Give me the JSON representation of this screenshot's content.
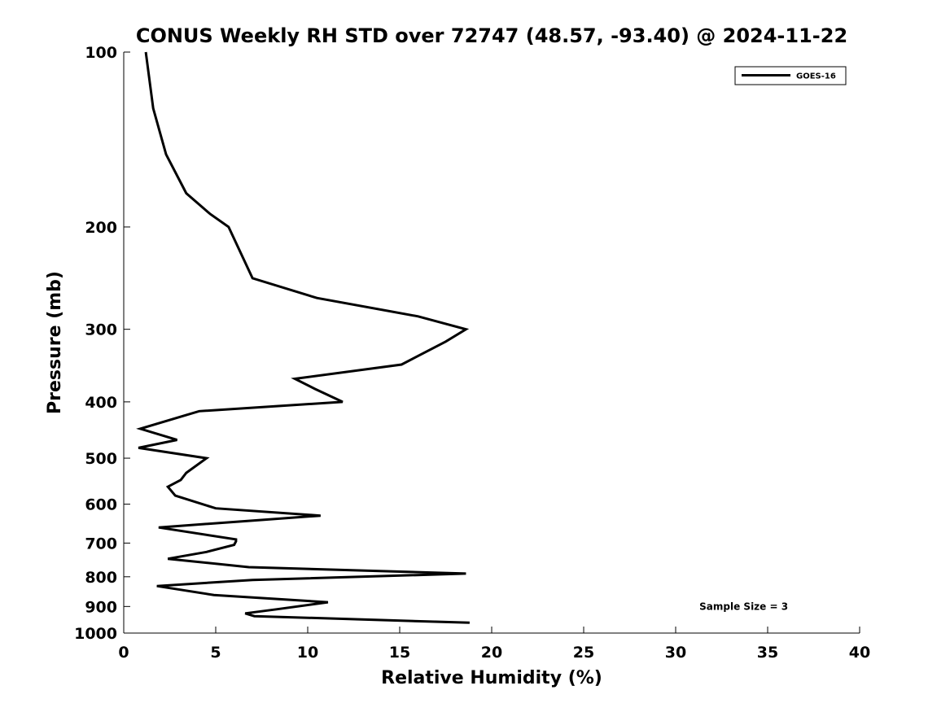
{
  "chart_data": {
    "type": "line",
    "title": "CONUS Weekly RH STD over 72747 (48.57, -93.40) @ 2024-11-22",
    "xlabel": "Relative Humidity (%)",
    "ylabel": "Pressure (mb)",
    "xlim": [
      0,
      40
    ],
    "ylim": [
      100,
      1000
    ],
    "y_scale": "log",
    "y_reversed": true,
    "grid": false,
    "legend_position": "top-right",
    "x_ticks": [
      "0",
      "5",
      "10",
      "15",
      "20",
      "25",
      "30",
      "35",
      "40"
    ],
    "y_ticks": [
      "100",
      "200",
      "300",
      "400",
      "500",
      "600",
      "700",
      "800",
      "900",
      "1000"
    ],
    "series": [
      {
        "name": "GOES-16",
        "color": "#000000",
        "points": [
          [
            1.2,
            100
          ],
          [
            1.6,
            125
          ],
          [
            2.3,
            150
          ],
          [
            3.4,
            175
          ],
          [
            4.7,
            190
          ],
          [
            5.7,
            200
          ],
          [
            7.0,
            245
          ],
          [
            10.5,
            265
          ],
          [
            16.0,
            285
          ],
          [
            18.6,
            300
          ],
          [
            17.5,
            315
          ],
          [
            15.1,
            345
          ],
          [
            9.3,
            365
          ],
          [
            10.4,
            380
          ],
          [
            11.9,
            400
          ],
          [
            4.1,
            415
          ],
          [
            0.9,
            445
          ],
          [
            2.9,
            465
          ],
          [
            0.8,
            480
          ],
          [
            4.5,
            500
          ],
          [
            3.4,
            530
          ],
          [
            3.1,
            545
          ],
          [
            2.4,
            560
          ],
          [
            2.8,
            580
          ],
          [
            5.0,
            610
          ],
          [
            10.7,
            628
          ],
          [
            7.1,
            640
          ],
          [
            1.9,
            658
          ],
          [
            6.1,
            690
          ],
          [
            6.1,
            695
          ],
          [
            6.0,
            705
          ],
          [
            4.5,
            725
          ],
          [
            2.4,
            745
          ],
          [
            6.8,
            770
          ],
          [
            18.6,
            790
          ],
          [
            7.0,
            810
          ],
          [
            1.8,
            830
          ],
          [
            4.9,
            860
          ],
          [
            11.1,
            885
          ],
          [
            8.3,
            910
          ],
          [
            6.6,
            925
          ],
          [
            7.1,
            935
          ],
          [
            18.8,
            960
          ]
        ]
      }
    ],
    "annotations": [
      {
        "text": "Sample Size = 3",
        "x": 33.7,
        "y": 900
      }
    ]
  }
}
